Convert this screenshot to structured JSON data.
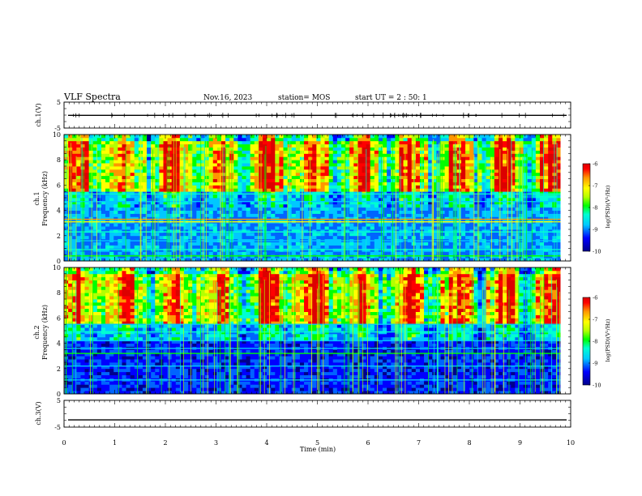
{
  "header": {
    "title": "VLF Spectra",
    "date": "Nov.16, 2023",
    "station": "station= MOS",
    "start": "start  UT =  2 : 50: 1"
  },
  "colors": {
    "axis": "#000000",
    "colormap": [
      "#000033",
      "#00008b",
      "#0000ff",
      "#0064ff",
      "#00c8ff",
      "#00ffd2",
      "#00ff00",
      "#b4ff00",
      "#ffff00",
      "#ff9600",
      "#ff0000",
      "#dc0000"
    ]
  },
  "chart_data": [
    {
      "type": "line",
      "panel": "ch1-waveform",
      "ylabel": "ch.1(V)",
      "ylim": [
        -5,
        5
      ],
      "yticks": [
        "5",
        "-5"
      ],
      "xlim": [
        0,
        10
      ],
      "series": [
        {
          "values": [
            -0.1,
            -0.1
          ]
        }
      ]
    },
    {
      "type": "heatmap",
      "panel": "ch1-spectrogram",
      "ylabel": "ch.1\nFrequency (kHz)",
      "ylabel_lines": [
        "ch.1",
        "Frequency (kHz)"
      ],
      "ylim": [
        0,
        10
      ],
      "yticks": [
        "0",
        "2",
        "4",
        "6",
        "8",
        "10"
      ],
      "xlim": [
        0,
        10
      ],
      "data_end_min": 9.8,
      "colorbar": {
        "label": "log(PSD)(V²/Hz)",
        "range": [
          -10,
          -6
        ],
        "ticks": [
          "-6",
          "-7",
          "-8",
          "-9",
          "-10"
        ]
      }
    },
    {
      "type": "heatmap",
      "panel": "ch2-spectrogram",
      "ylabel": "ch.2\nFrequency (kHz)",
      "ylabel_lines": [
        "ch.2",
        "Frequency (kHz)"
      ],
      "ylim": [
        0,
        10
      ],
      "yticks": [
        "0",
        "2",
        "4",
        "6",
        "8",
        "10"
      ],
      "xlim": [
        0,
        10
      ],
      "data_end_min": 9.8,
      "colorbar": {
        "label": "log(PSD)(V²/Hz)",
        "range": [
          -10,
          -6
        ],
        "ticks": [
          "-6",
          "-7",
          "-8",
          "-9",
          "-10"
        ]
      }
    },
    {
      "type": "line",
      "panel": "ch3-waveform",
      "ylabel": "ch.3(V)",
      "ylim": [
        -5,
        5
      ],
      "yticks": [
        "5",
        "-5"
      ],
      "xlim": [
        0,
        10
      ],
      "xlabel": "Time  (min)",
      "xticks": [
        "0",
        "1",
        "2",
        "3",
        "4",
        "5",
        "6",
        "7",
        "8",
        "9",
        "10"
      ],
      "series": [
        {
          "values": [
            -2.3,
            -2.3
          ]
        }
      ]
    }
  ]
}
